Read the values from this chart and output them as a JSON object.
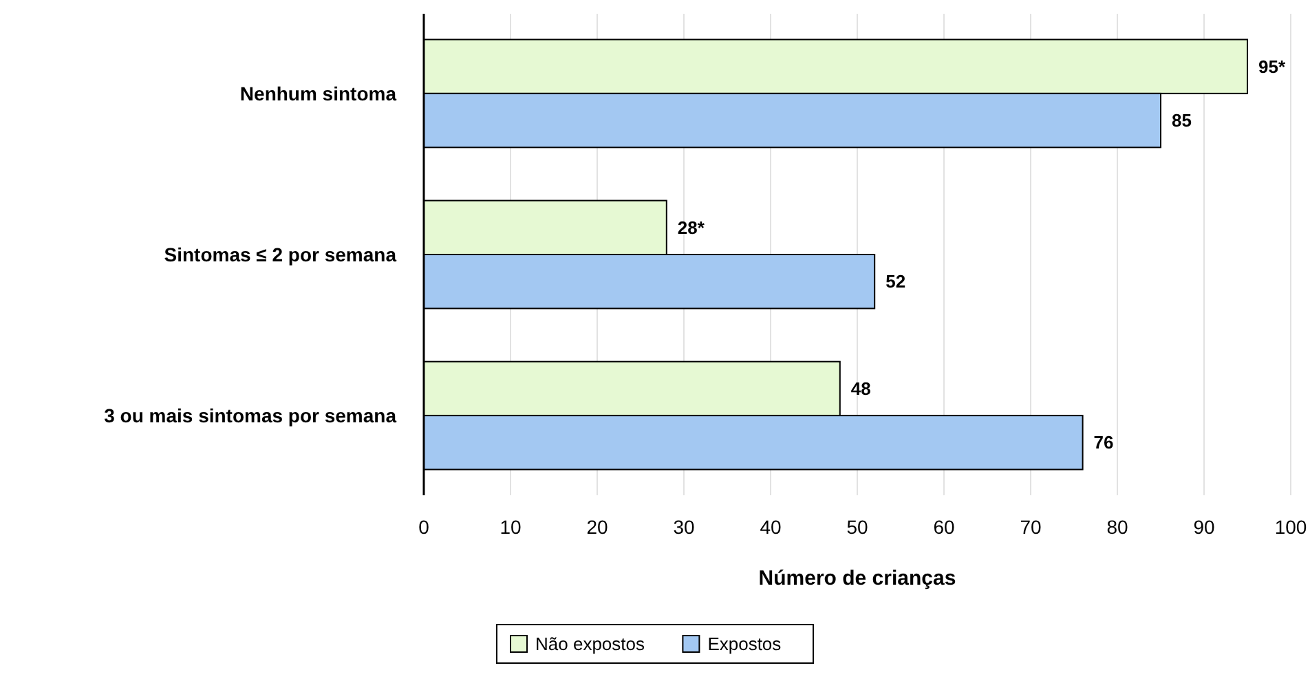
{
  "chart_data": {
    "type": "bar",
    "orientation": "horizontal",
    "categories": [
      "Nenhum sintoma",
      "Sintomas ≤ 2 por semana",
      "3 ou mais sintomas por semana"
    ],
    "series": [
      {
        "name": "Não expostos",
        "color": "#e6f9d3",
        "values": [
          95,
          28,
          48
        ],
        "value_labels": [
          "95*",
          "28*",
          "48"
        ]
      },
      {
        "name": "Expostos",
        "color": "#a3c8f2",
        "values": [
          85,
          52,
          76
        ],
        "value_labels": [
          "85",
          "52",
          "76"
        ]
      }
    ],
    "xlabel": "Número de crianças",
    "xlim": [
      0,
      100
    ],
    "xticks": [
      0,
      10,
      20,
      30,
      40,
      50,
      60,
      70,
      80,
      90,
      100
    ],
    "grid": "x",
    "legend": "bottom"
  }
}
